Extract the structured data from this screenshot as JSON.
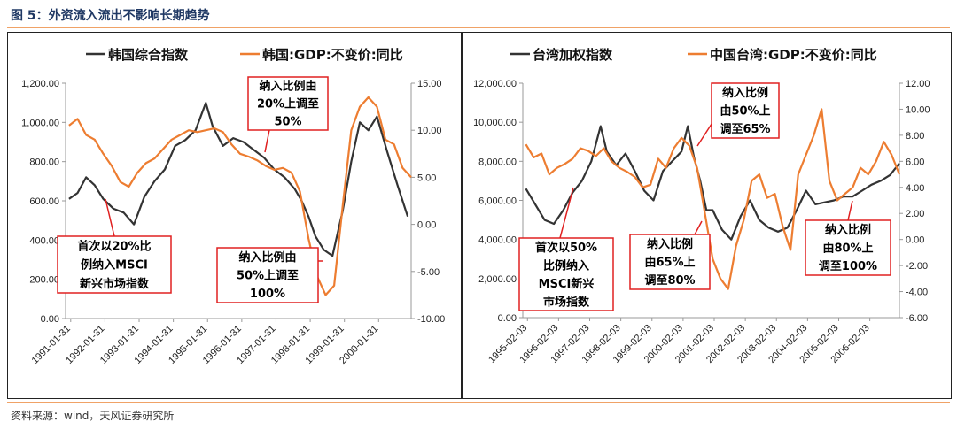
{
  "header": {
    "figure_title": "图 5：外资流入流出不影响长期趋势"
  },
  "footer": {
    "source": "资料来源：wind，天风证券研究所"
  },
  "colors": {
    "index": "#333333",
    "gdp": "#ED7D31",
    "annotation_border": "#e02020",
    "rule": "#f0a266"
  },
  "chart_data": [
    {
      "type": "line",
      "legend": [
        "韩国综合指数",
        "韩国:GDP:不变价:同比"
      ],
      "x_tick_labels": [
        "1991-01-31",
        "1992-01-31",
        "1993-01-31",
        "1994-01-31",
        "1995-01-31",
        "1996-01-31",
        "1997-01-31",
        "1998-01-31",
        "1999-01-31",
        "2000-01-31"
      ],
      "y_left": {
        "ticks": [
          "0.00",
          "200.00",
          "400.00",
          "600.00",
          "800.00",
          "1,000.00",
          "1,200.00"
        ],
        "lim": [
          0,
          1200
        ]
      },
      "y_right": {
        "ticks": [
          "-10.00",
          "-5.00",
          "0.00",
          "5.00",
          "10.00",
          "15.00"
        ],
        "lim": [
          -10,
          15
        ]
      },
      "x_range": [
        1990.9,
        2001.0
      ],
      "series": [
        {
          "name": "韩国综合指数",
          "axis": "left",
          "x": [
            1991.0,
            1991.25,
            1991.5,
            1991.75,
            1992.0,
            1992.3,
            1992.6,
            1992.9,
            1993.2,
            1993.5,
            1993.8,
            1994.1,
            1994.4,
            1994.7,
            1995.0,
            1995.2,
            1995.5,
            1995.8,
            1996.1,
            1996.4,
            1996.7,
            1997.0,
            1997.3,
            1997.6,
            1997.8,
            1998.0,
            1998.2,
            1998.45,
            1998.7,
            1999.0,
            1999.25,
            1999.5,
            1999.75,
            2000.0,
            2000.3,
            2000.6,
            2000.9
          ],
          "values": [
            610,
            640,
            720,
            680,
            610,
            560,
            540,
            480,
            620,
            700,
            760,
            880,
            910,
            960,
            1100,
            980,
            880,
            920,
            900,
            860,
            820,
            760,
            720,
            660,
            600,
            520,
            420,
            350,
            320,
            550,
            800,
            1000,
            960,
            1030,
            850,
            680,
            520
          ]
        },
        {
          "name": "韩国:GDP:不变价:同比",
          "axis": "right",
          "x": [
            1991.0,
            1991.25,
            1991.5,
            1991.75,
            1992.0,
            1992.25,
            1992.5,
            1992.75,
            1993.0,
            1993.25,
            1993.5,
            1993.75,
            1994.0,
            1994.25,
            1994.5,
            1994.75,
            1995.0,
            1995.25,
            1995.5,
            1995.75,
            1996.0,
            1996.25,
            1996.5,
            1996.75,
            1997.0,
            1997.25,
            1997.5,
            1997.75,
            1998.0,
            1998.25,
            1998.5,
            1998.75,
            1999.0,
            1999.25,
            1999.5,
            1999.75,
            2000.0,
            2000.25,
            2000.5,
            2000.75,
            2001.0
          ],
          "values": [
            10.5,
            11.2,
            9.5,
            9.0,
            7.5,
            6.2,
            4.5,
            4.0,
            5.5,
            6.5,
            7.0,
            8.0,
            9.0,
            9.5,
            10.0,
            9.8,
            10.0,
            10.2,
            9.8,
            8.5,
            7.5,
            7.2,
            6.8,
            6.2,
            5.8,
            6.0,
            5.5,
            3.5,
            -1.5,
            -5.5,
            -7.5,
            -6.5,
            2.0,
            10.0,
            12.5,
            13.5,
            12.5,
            9.0,
            8.5,
            6.0,
            5.0
          ]
        }
      ],
      "annotations": [
        {
          "text": [
            "首次以20%比",
            "例纳入MSCI",
            "新兴市场指数"
          ],
          "target_label": "1992-01-31"
        },
        {
          "text": [
            "纳入比例由",
            "20%上调至",
            "50%"
          ],
          "target_label": "1996-09"
        },
        {
          "text": [
            "纳入比例由",
            "50%上调至",
            "100%"
          ],
          "target_label": "1998-05"
        }
      ]
    },
    {
      "type": "line",
      "legend": [
        "台湾加权指数",
        "中国台湾:GDP:不变价:同比"
      ],
      "x_tick_labels": [
        "1995-02-03",
        "1996-02-03",
        "1997-02-03",
        "1998-02-03",
        "1999-02-03",
        "2000-02-03",
        "2001-02-03",
        "2002-02-03",
        "2003-02-03",
        "2004-02-03",
        "2005-02-03",
        "2006-02-03"
      ],
      "y_left": {
        "ticks": [
          "0.00",
          "2,000.00",
          "4,000.00",
          "6,000.00",
          "8,000.00",
          "10,000.00",
          "12,000.00"
        ],
        "lim": [
          0,
          12000
        ]
      },
      "y_right": {
        "ticks": [
          "-6.00",
          "-4.00",
          "-2.00",
          "0.00",
          "2.00",
          "4.00",
          "6.00",
          "8.00",
          "10.00",
          "12.00"
        ],
        "lim": [
          -6,
          12
        ]
      },
      "x_range": [
        1994.9,
        2007.0
      ],
      "series": [
        {
          "name": "台湾加权指数",
          "axis": "left",
          "x": [
            1995.0,
            1995.3,
            1995.6,
            1995.9,
            1996.2,
            1996.5,
            1996.8,
            1997.1,
            1997.4,
            1997.6,
            1997.9,
            1998.2,
            1998.5,
            1998.8,
            1999.1,
            1999.4,
            1999.7,
            2000.0,
            2000.2,
            2000.4,
            2000.6,
            2000.8,
            2001.0,
            2001.3,
            2001.6,
            2001.9,
            2002.2,
            2002.5,
            2002.8,
            2003.1,
            2003.4,
            2003.7,
            2004.0,
            2004.3,
            2004.6,
            2004.9,
            2005.2,
            2005.5,
            2005.8,
            2006.1,
            2006.4,
            2006.7,
            2007.0
          ],
          "values": [
            6600,
            5800,
            5000,
            4800,
            5500,
            6400,
            7000,
            8000,
            9800,
            8500,
            7800,
            8400,
            7500,
            6500,
            6000,
            7500,
            8000,
            8500,
            9800,
            8200,
            7000,
            5500,
            5500,
            4500,
            4000,
            5200,
            6000,
            5000,
            4600,
            4400,
            4600,
            5500,
            6500,
            5800,
            5900,
            6000,
            6200,
            6200,
            6500,
            6800,
            7000,
            7300,
            7900
          ]
        },
        {
          "name": "中国台湾:GDP:不变价:同比",
          "axis": "right",
          "x": [
            1995.0,
            1995.25,
            1995.5,
            1995.75,
            1996.0,
            1996.25,
            1996.5,
            1996.75,
            1997.0,
            1997.25,
            1997.5,
            1997.75,
            1998.0,
            1998.25,
            1998.5,
            1998.75,
            1999.0,
            1999.25,
            1999.5,
            1999.75,
            2000.0,
            2000.25,
            2000.5,
            2000.75,
            2001.0,
            2001.25,
            2001.5,
            2001.75,
            2002.0,
            2002.25,
            2002.5,
            2002.75,
            2003.0,
            2003.25,
            2003.5,
            2003.75,
            2004.0,
            2004.25,
            2004.5,
            2004.75,
            2005.0,
            2005.25,
            2005.5,
            2005.75,
            2006.0,
            2006.25,
            2006.5,
            2006.75,
            2007.0
          ],
          "values": [
            7.3,
            6.3,
            6.6,
            5.0,
            5.5,
            5.8,
            6.2,
            7.0,
            6.8,
            6.4,
            7.0,
            6.0,
            5.5,
            5.2,
            4.8,
            4.0,
            4.2,
            6.2,
            5.5,
            7.0,
            7.8,
            7.2,
            5.5,
            2.0,
            -1.5,
            -3.0,
            -3.8,
            -0.5,
            1.5,
            4.5,
            5.0,
            3.2,
            3.5,
            1.0,
            -0.8,
            5.0,
            6.5,
            8.0,
            10.0,
            4.5,
            3.0,
            3.5,
            4.0,
            5.5,
            5.0,
            6.0,
            7.5,
            6.5,
            5.0
          ]
        }
      ],
      "annotations": [
        {
          "text": [
            "首次以50%",
            "比例纳入",
            "MSCI新兴",
            "市场指数"
          ],
          "target_label": "1996-09"
        },
        {
          "text": [
            "纳入比例",
            "由50%上",
            "调至65%"
          ],
          "target_label": "2000-09"
        },
        {
          "text": [
            "纳入比例",
            "由65%上",
            "调至80%"
          ],
          "target_label": "2000-12"
        },
        {
          "text": [
            "纳入比例",
            "由80%上",
            "调至100%"
          ],
          "target_label": "2005-06"
        }
      ]
    }
  ]
}
